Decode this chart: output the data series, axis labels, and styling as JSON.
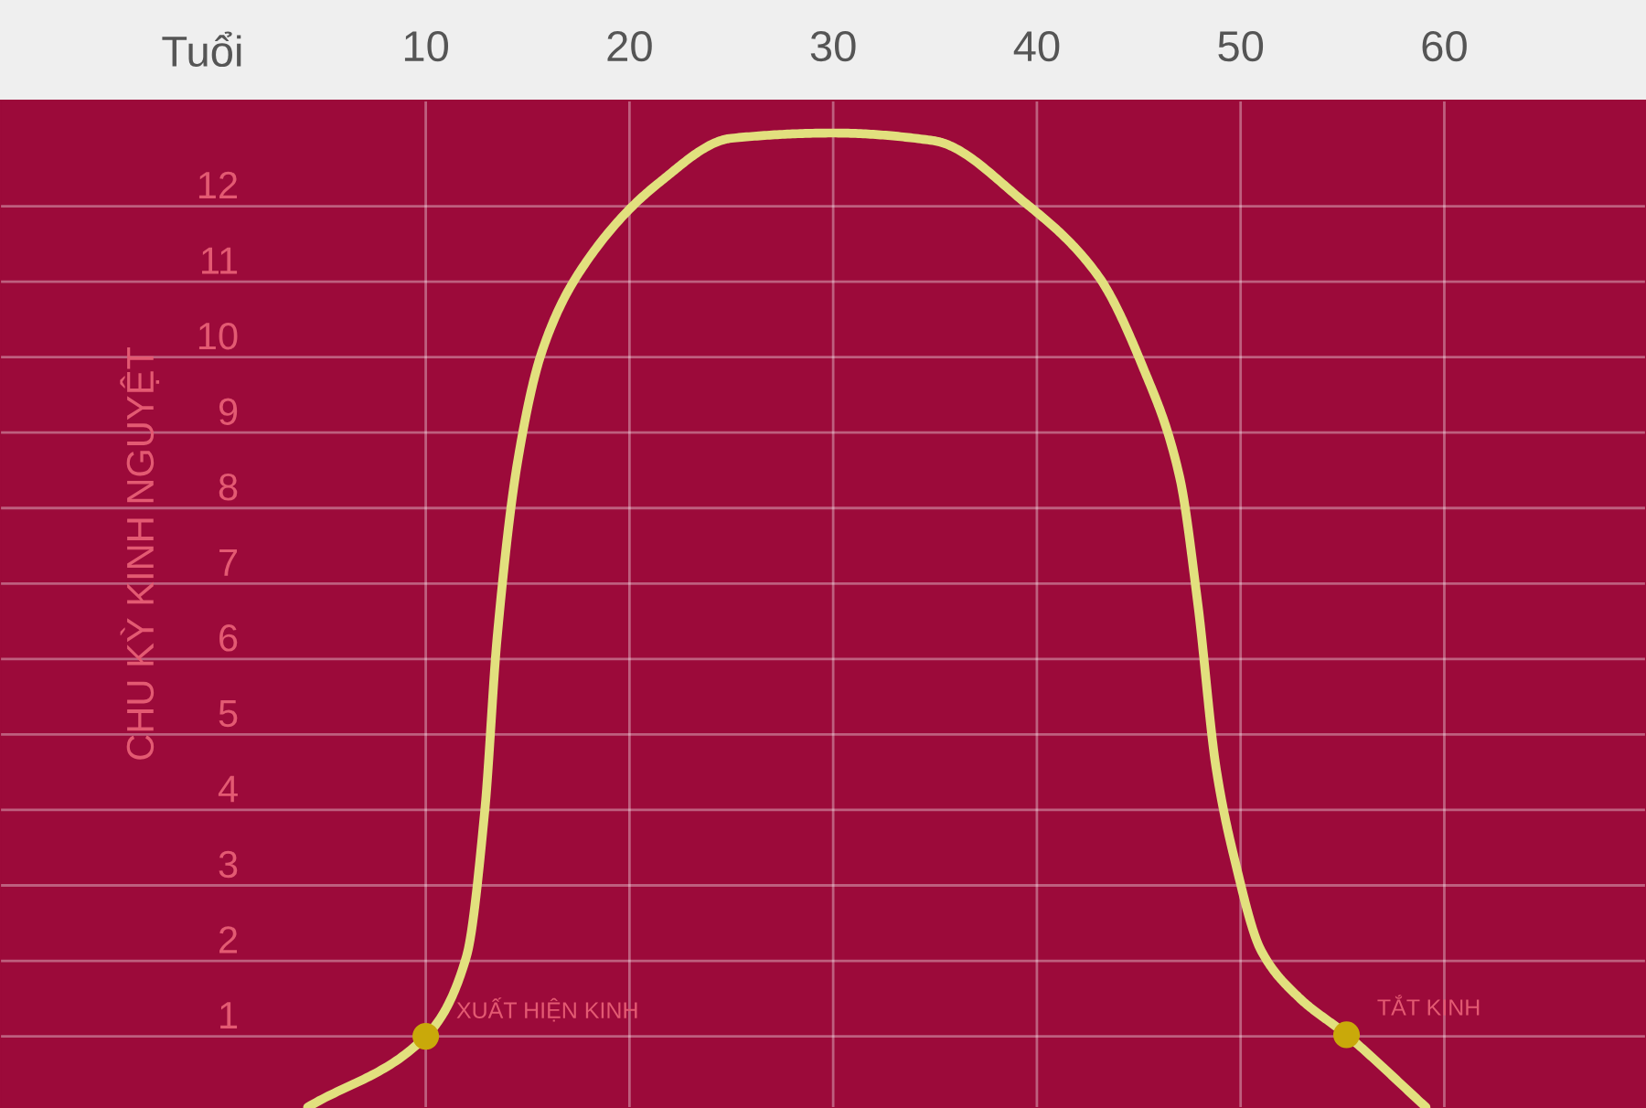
{
  "chart_data": {
    "type": "line",
    "xlabel": "Tuổi",
    "ylabel": "CHU KỲ KINH NGUYỆT",
    "xlim": [
      -10.9,
      69.9
    ],
    "xticks": [
      10,
      20,
      30,
      40,
      50,
      60
    ],
    "ylim": [
      0.05,
      13.4
    ],
    "yticks": [
      1,
      2,
      3,
      4,
      5,
      6,
      7,
      8,
      9,
      10,
      11,
      12
    ],
    "grid": true,
    "legend": false,
    "series": [
      {
        "color": "#e2e07e",
        "x": [
          4.2,
          10,
          12.0,
          12.9,
          13.5,
          14.5,
          15.7,
          17.6,
          21.4,
          25,
          30,
          34.9,
          39.4,
          43.0,
          45.2,
          47.0,
          47.9,
          48.8,
          49.7,
          51.0,
          52.8,
          55.2,
          59.1
        ],
        "values": [
          0.06,
          1,
          2.06,
          4.0,
          6.27,
          8.6,
          10.07,
          11.15,
          12.3,
          12.9,
          12.97,
          12.87,
          12.05,
          11.08,
          9.87,
          8.42,
          6.73,
          4.55,
          3.35,
          2.14,
          1.53,
          1.02,
          0.06
        ]
      },
      {
        "type": "scatter",
        "color": "#c9a90a",
        "marker": "circle",
        "x": [
          10,
          55.2
        ],
        "values": [
          1,
          1.02
        ]
      }
    ],
    "annotations": [
      {
        "text": "XUẤT HIỆN KINH",
        "x": 10,
        "y": 1
      },
      {
        "text": "TẮT KINH",
        "x": 55.2,
        "y": 1.02
      }
    ]
  }
}
